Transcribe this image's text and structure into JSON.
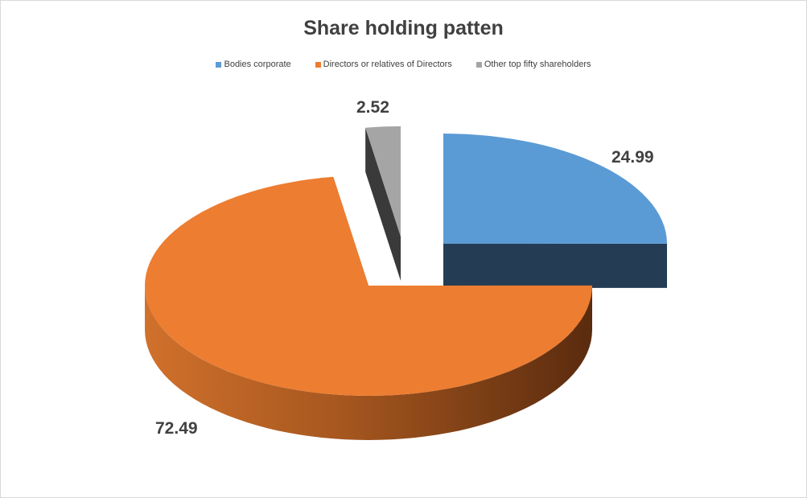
{
  "chart_data": {
    "type": "pie",
    "style": "3d-exploded",
    "title": "Share holding patten",
    "legend_position": "top",
    "categories": [
      "Bodies corporate",
      "Directors or relatives of Directors",
      "Other top fifty shareholders"
    ],
    "values": [
      24.99,
      72.49,
      2.52
    ],
    "data_labels": [
      "24.99",
      "72.49",
      "2.52"
    ],
    "colors": [
      "#5b9bd5",
      "#ed7d31",
      "#a5a5a5"
    ]
  }
}
